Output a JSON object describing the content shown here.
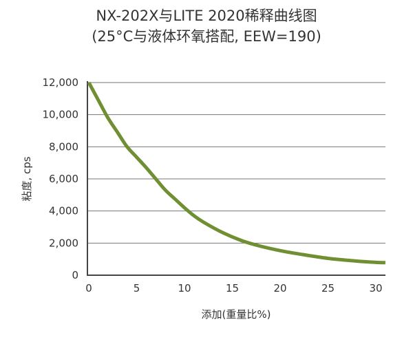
{
  "chart_data": {
    "type": "line",
    "title_line1": "NX-202X与LITE 2020稀释曲线图",
    "title_line2": "(25°C与液体环氧搭配, EEW=190)",
    "xlabel": "添加(重量比%)",
    "ylabel": "粘度, cps",
    "xlim": [
      0,
      31
    ],
    "ylim": [
      0,
      12000
    ],
    "xticks": [
      0,
      5,
      10,
      15,
      20,
      25,
      30
    ],
    "xtick_labels": [
      "0",
      "5",
      "10",
      "15",
      "20",
      "25",
      "30"
    ],
    "yticks": [
      0,
      2000,
      4000,
      6000,
      8000,
      10000,
      12000
    ],
    "ytick_labels": [
      "0",
      "2,000",
      "4,000",
      "6,000",
      "8,000",
      "10,000",
      "12,000"
    ],
    "grid": "horizontal",
    "series_color": "#6f8f32",
    "series": [
      {
        "x": [
          0,
          1,
          2,
          3,
          4,
          5,
          6,
          7,
          8,
          9,
          10,
          11,
          12,
          14,
          16,
          18,
          20,
          22,
          25,
          28,
          30,
          31
        ],
        "values": [
          12000,
          10900,
          9800,
          8900,
          8000,
          7350,
          6700,
          6000,
          5300,
          4750,
          4200,
          3700,
          3300,
          2650,
          2150,
          1800,
          1530,
          1320,
          1050,
          880,
          800,
          780
        ]
      }
    ]
  }
}
